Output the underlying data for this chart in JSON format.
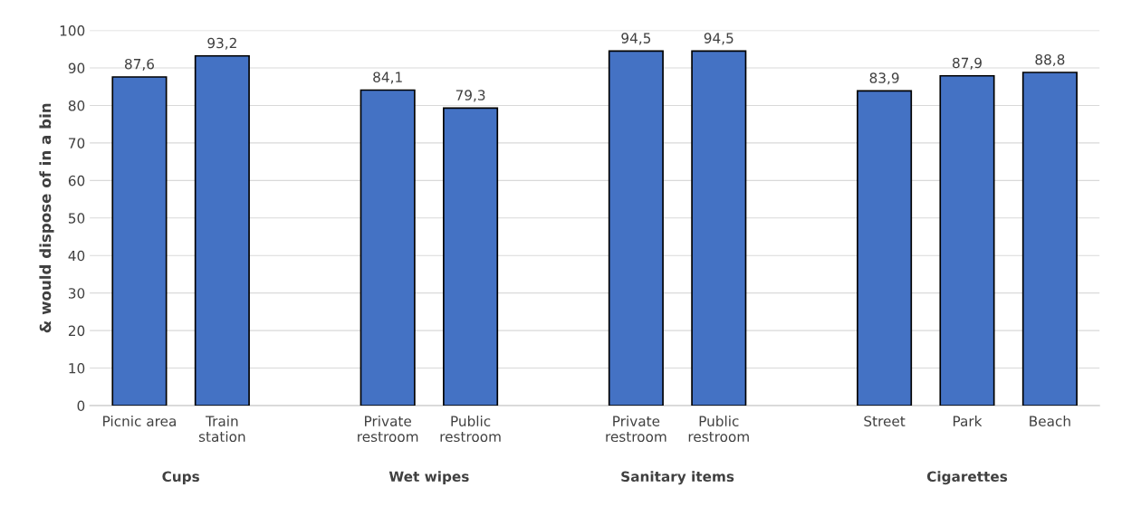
{
  "chart_data": {
    "type": "bar",
    "ylabel": "& would dispose of in a bin",
    "categories": [
      "Picnic area",
      "Train\nstation",
      null,
      "Private\nrestroom",
      "Public\nrestroom",
      null,
      "Private\nrestroom",
      "Public\nrestroom",
      null,
      "Street",
      "Park",
      "Beach"
    ],
    "values": [
      87.6,
      93.2,
      null,
      84.1,
      79.3,
      null,
      94.5,
      94.5,
      null,
      83.9,
      87.9,
      88.8
    ],
    "value_labels": [
      "87,6",
      "93,2",
      null,
      "84,1",
      "79,3",
      null,
      "94,5",
      "94,5",
      null,
      "83,9",
      "87,9",
      "88,8"
    ],
    "color": "#4472c4",
    "ylim": [
      0,
      100
    ],
    "yticks": [
      0,
      10,
      20,
      30,
      40,
      50,
      60,
      70,
      80,
      90,
      100
    ],
    "grid": "y",
    "annotations": [
      "Cups",
      "Wet wipes",
      "Sanitary items",
      "Cigarettes"
    ]
  }
}
